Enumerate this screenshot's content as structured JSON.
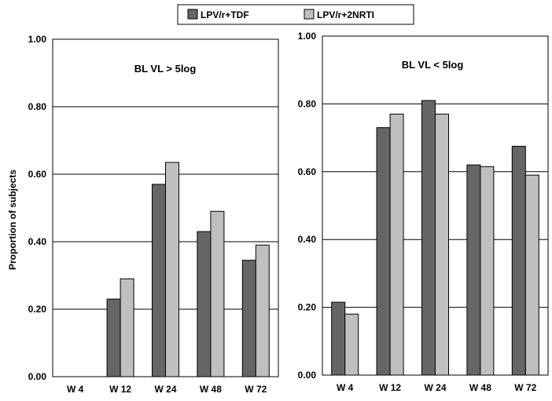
{
  "chart_data": [
    {
      "type": "bar",
      "title": "BL VL > 5log",
      "xlabel": "",
      "ylabel": "Proportion of subjects",
      "categories": [
        "W 4",
        "W 12",
        "W 24",
        "W 48",
        "W 72"
      ],
      "ylim": [
        0,
        1
      ],
      "yticks": [
        "0.00",
        "0.20",
        "0.40",
        "0.60",
        "0.80",
        "1.00"
      ],
      "grid": true,
      "series": [
        {
          "name": "LPV/r+TDF",
          "values": [
            0,
            0.23,
            0.57,
            0.43,
            0.345
          ]
        },
        {
          "name": "LPV/r+2NRTI",
          "values": [
            0,
            0.29,
            0.635,
            0.49,
            0.39
          ]
        }
      ]
    },
    {
      "type": "bar",
      "title": "BL VL < 5log",
      "xlabel": "",
      "ylabel": "",
      "categories": [
        "W 4",
        "W 12",
        "W 24",
        "W 48",
        "W 72"
      ],
      "ylim": [
        0,
        1
      ],
      "yticks": [
        "0.00",
        "0.20",
        "0.40",
        "0.60",
        "0.80",
        "1.00"
      ],
      "grid": true,
      "series": [
        {
          "name": "LPV/r+TDF",
          "values": [
            0.215,
            0.73,
            0.81,
            0.62,
            0.675
          ]
        },
        {
          "name": "LPV/r+2NRTI",
          "values": [
            0.18,
            0.77,
            0.77,
            0.615,
            0.59
          ]
        }
      ]
    }
  ],
  "legend": {
    "placement": "top-center",
    "items": [
      {
        "label": "LPV/r+TDF",
        "color": "#666666"
      },
      {
        "label": "LPV/r+2NRTI",
        "color": "#bfbfbf"
      }
    ]
  },
  "colors": {
    "series_dark": "#666666",
    "series_light": "#bfbfbf",
    "border": "#000000"
  }
}
